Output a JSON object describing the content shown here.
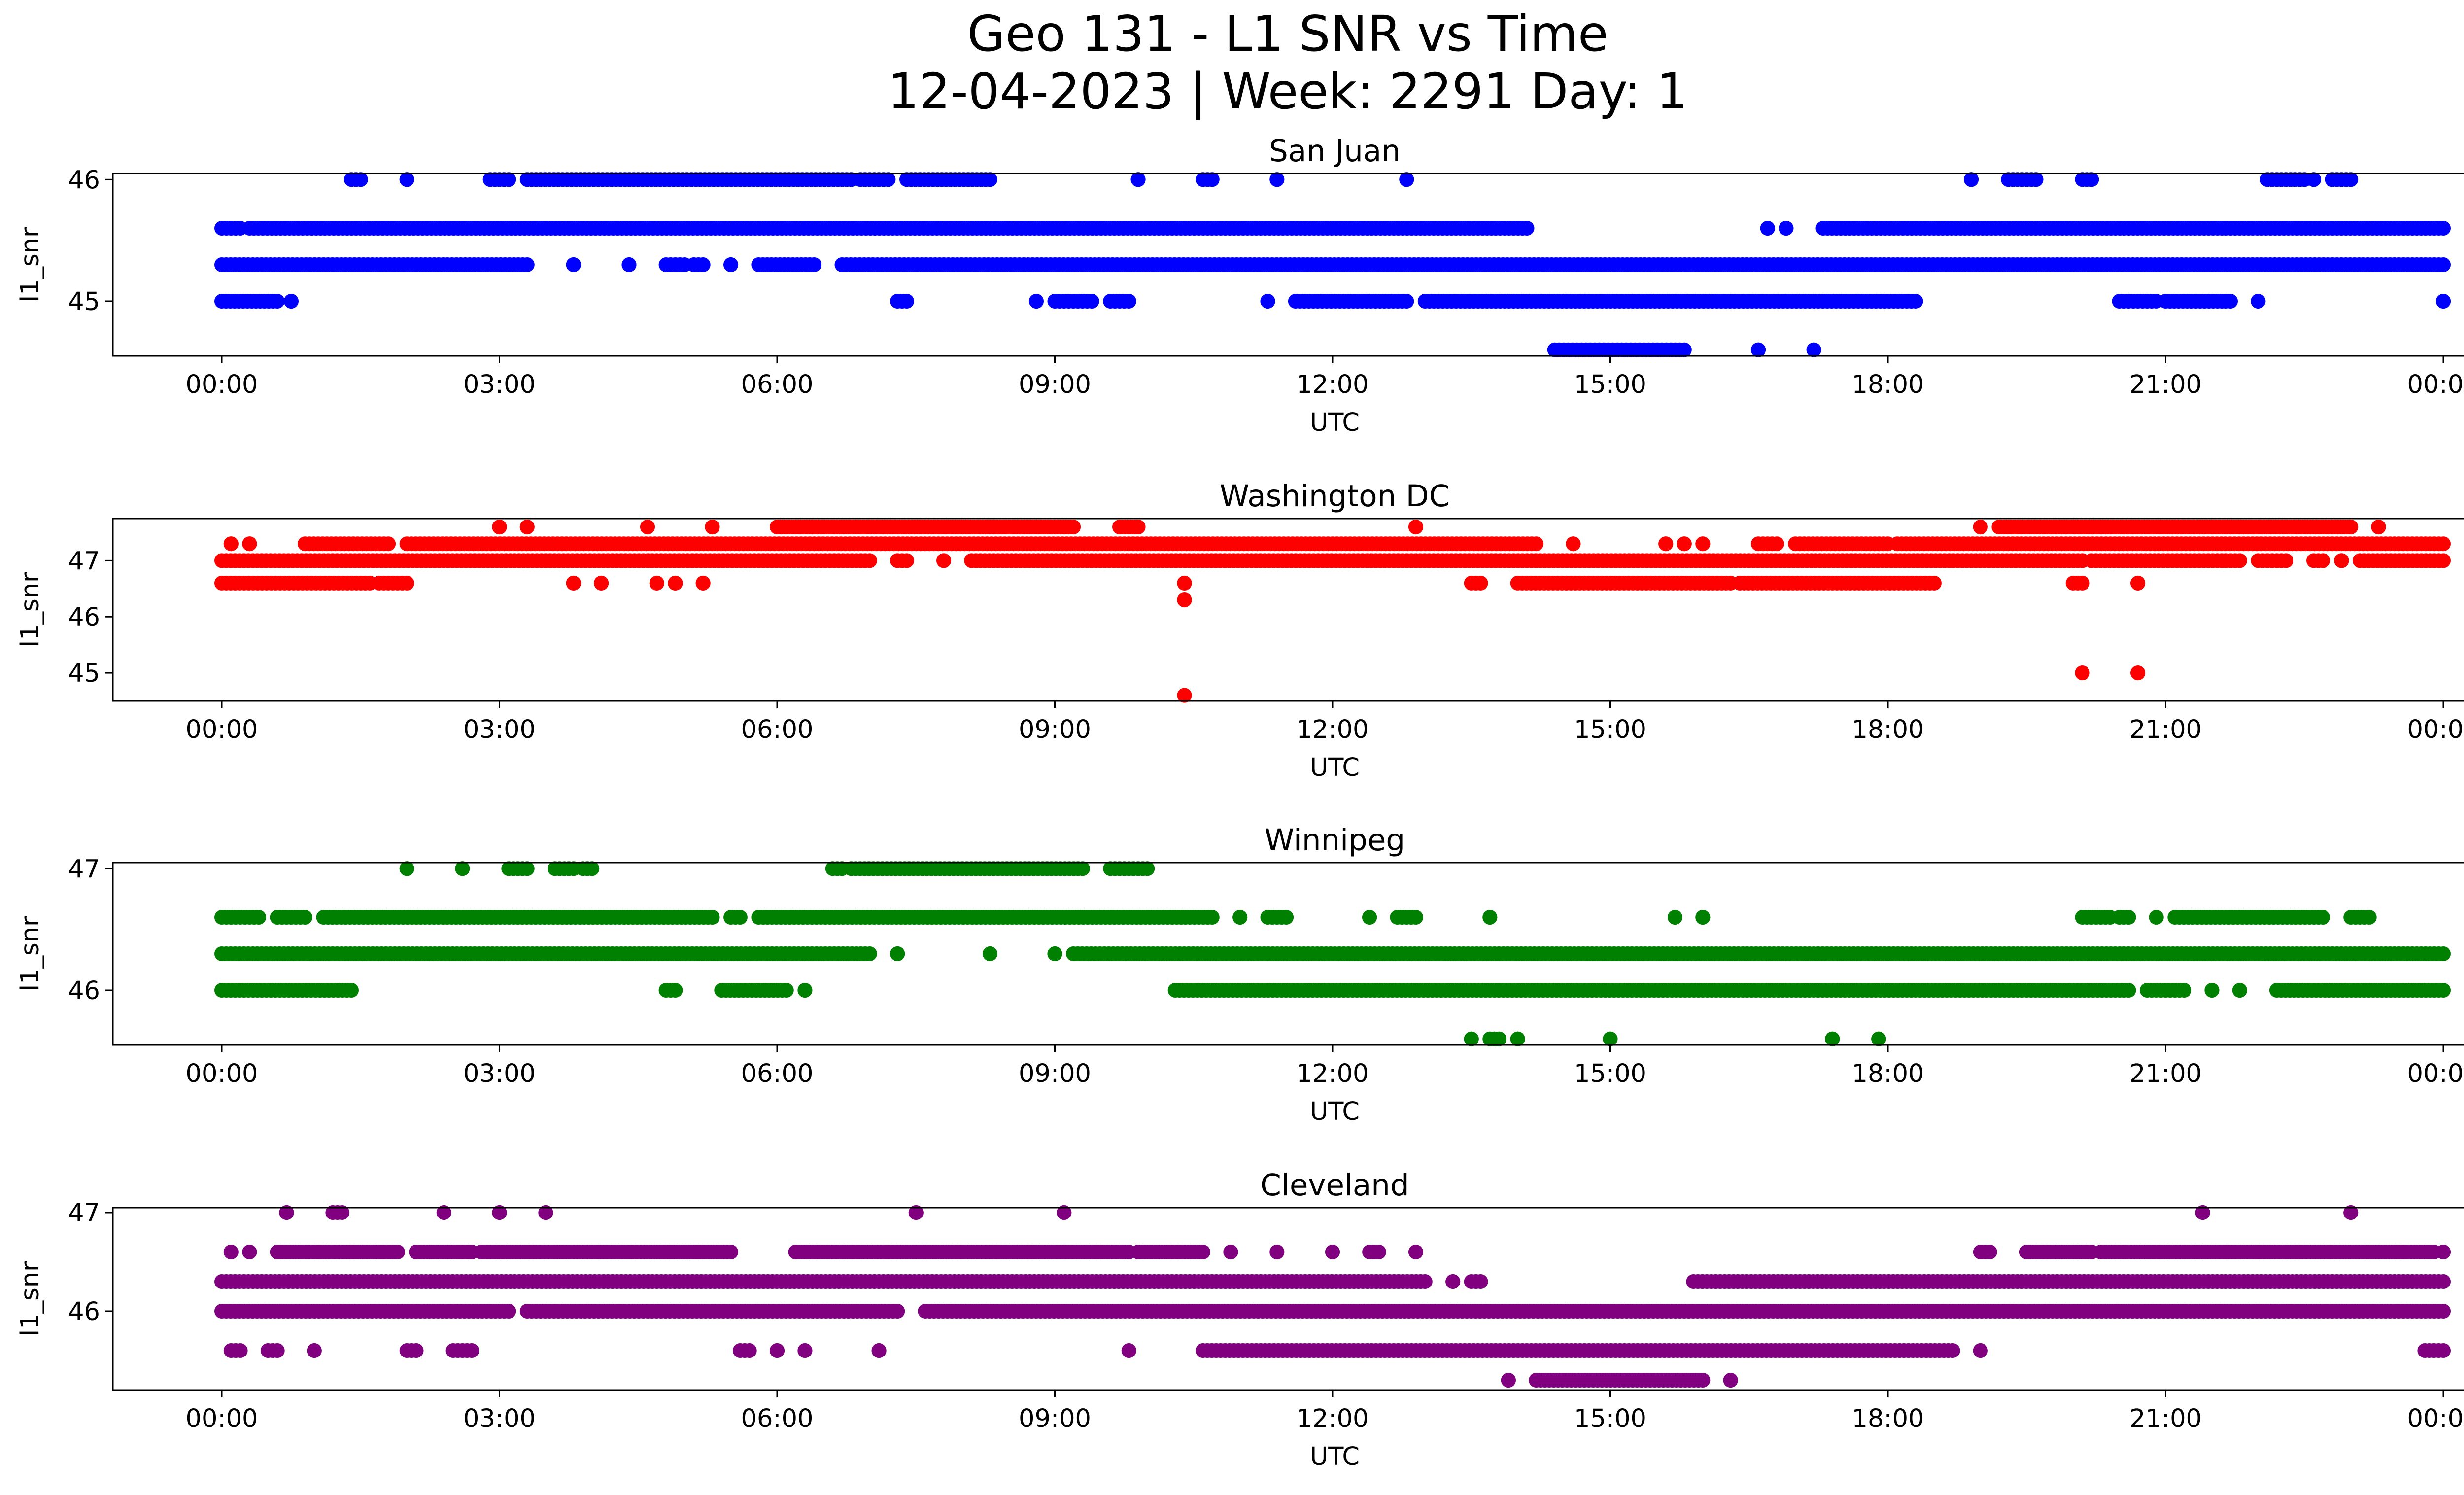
{
  "figure": {
    "title_line1": "Geo 131 - L1 SNR vs Time",
    "title_line2": "12-04-2023 | Week: 2291 Day: 1"
  },
  "chart_data": [
    {
      "type": "scatter",
      "title": "San Juan",
      "xlabel": "UTC",
      "ylabel": "l1_snr",
      "color": "#0000ff",
      "xlim": [
        0,
        24
      ],
      "ylim": [
        44.55,
        46.05
      ],
      "x_ticks": [
        "00:00",
        "03:00",
        "06:00",
        "09:00",
        "12:00",
        "15:00",
        "18:00",
        "21:00",
        "00:00"
      ],
      "y_ticks": [
        45,
        46
      ],
      "grid": false,
      "bands": [
        {
          "y": 46.0,
          "segments": [
            [
              1.4,
              1.5
            ],
            [
              2.0,
              2.0
            ],
            [
              2.9,
              3.1
            ],
            [
              3.3,
              6.8
            ],
            [
              6.9,
              7.2
            ],
            [
              7.4,
              8.3
            ],
            [
              9.9,
              9.9
            ],
            [
              10.6,
              10.7
            ],
            [
              11.4,
              11.4
            ],
            [
              12.8,
              12.8
            ],
            [
              18.9,
              18.9
            ],
            [
              19.3,
              19.6
            ],
            [
              20.1,
              20.2
            ],
            [
              22.1,
              22.5
            ],
            [
              22.6,
              22.6
            ],
            [
              22.8,
              23.0
            ]
          ]
        },
        {
          "y": 45.6,
          "segments": [
            [
              0.0,
              0.2
            ],
            [
              0.3,
              14.1
            ],
            [
              16.7,
              16.7
            ],
            [
              16.9,
              16.9
            ],
            [
              17.3,
              24.0
            ]
          ]
        },
        {
          "y": 45.3,
          "segments": [
            [
              0.0,
              3.3
            ],
            [
              3.8,
              3.8
            ],
            [
              4.4,
              4.4
            ],
            [
              4.8,
              5.0
            ],
            [
              5.1,
              5.2
            ],
            [
              5.5,
              5.5
            ],
            [
              5.8,
              6.4
            ],
            [
              6.7,
              24.0
            ]
          ]
        },
        {
          "y": 45.0,
          "segments": [
            [
              0.0,
              0.6
            ],
            [
              0.75,
              0.75
            ],
            [
              7.3,
              7.4
            ],
            [
              8.8,
              8.8
            ],
            [
              9.0,
              9.4
            ],
            [
              9.6,
              9.8
            ],
            [
              11.3,
              11.3
            ],
            [
              11.6,
              12.8
            ],
            [
              13.0,
              18.3
            ],
            [
              20.5,
              20.9
            ],
            [
              21.0,
              21.7
            ],
            [
              22.0,
              22.0
            ],
            [
              24.0,
              24.0
            ]
          ]
        },
        {
          "y": 44.6,
          "segments": [
            [
              14.4,
              15.8
            ],
            [
              16.6,
              16.6
            ],
            [
              17.2,
              17.2
            ]
          ]
        }
      ]
    },
    {
      "type": "scatter",
      "title": "Washington DC",
      "xlabel": "UTC",
      "ylabel": "l1_snr",
      "color": "#ff0000",
      "xlim": [
        0,
        24
      ],
      "ylim": [
        44.5,
        47.75
      ],
      "x_ticks": [
        "00:00",
        "03:00",
        "06:00",
        "09:00",
        "12:00",
        "15:00",
        "18:00",
        "21:00",
        "00:00"
      ],
      "y_ticks": [
        45,
        46,
        47
      ],
      "grid": false,
      "bands": [
        {
          "y": 47.6,
          "segments": [
            [
              3.0,
              3.0
            ],
            [
              3.3,
              3.3
            ],
            [
              4.6,
              4.6
            ],
            [
              5.3,
              5.3
            ],
            [
              6.0,
              9.2
            ],
            [
              9.7,
              9.9
            ],
            [
              12.9,
              12.9
            ],
            [
              19.0,
              19.0
            ],
            [
              19.2,
              23.0
            ],
            [
              23.3,
              23.3
            ]
          ]
        },
        {
          "y": 47.3,
          "segments": [
            [
              0.1,
              0.1
            ],
            [
              0.3,
              0.3
            ],
            [
              0.9,
              1.8
            ],
            [
              2.0,
              14.2
            ],
            [
              14.6,
              14.6
            ],
            [
              15.6,
              15.6
            ],
            [
              15.8,
              15.8
            ],
            [
              16.0,
              16.0
            ],
            [
              16.6,
              16.8
            ],
            [
              17.0,
              18.0
            ],
            [
              18.1,
              24.0
            ]
          ]
        },
        {
          "y": 47.0,
          "segments": [
            [
              0.0,
              7.0
            ],
            [
              7.3,
              7.4
            ],
            [
              7.8,
              7.8
            ],
            [
              8.1,
              20.1
            ],
            [
              20.2,
              21.8
            ],
            [
              22.0,
              22.3
            ],
            [
              22.6,
              22.7
            ],
            [
              22.9,
              22.9
            ],
            [
              23.1,
              24.0
            ]
          ]
        },
        {
          "y": 46.6,
          "segments": [
            [
              0.0,
              1.6
            ],
            [
              1.7,
              2.0
            ],
            [
              3.8,
              3.8
            ],
            [
              4.1,
              4.1
            ],
            [
              4.7,
              4.7
            ],
            [
              4.9,
              4.9
            ],
            [
              5.2,
              5.2
            ],
            [
              10.4,
              10.4
            ],
            [
              13.5,
              13.6
            ],
            [
              14.0,
              16.3
            ],
            [
              16.4,
              18.5
            ],
            [
              20.0,
              20.1
            ],
            [
              20.7,
              20.7
            ]
          ]
        },
        {
          "y": 46.3,
          "segments": [
            [
              10.4,
              10.4
            ]
          ]
        },
        {
          "y": 45.0,
          "segments": [
            [
              20.1,
              20.1
            ],
            [
              20.7,
              20.7
            ]
          ]
        },
        {
          "y": 44.6,
          "segments": [
            [
              10.4,
              10.4
            ]
          ]
        }
      ]
    },
    {
      "type": "scatter",
      "title": "Winnipeg",
      "xlabel": "UTC",
      "ylabel": "l1_snr",
      "color": "#008000",
      "xlim": [
        0,
        24
      ],
      "ylim": [
        45.55,
        47.05
      ],
      "x_ticks": [
        "00:00",
        "03:00",
        "06:00",
        "09:00",
        "12:00",
        "15:00",
        "18:00",
        "21:00",
        "00:00"
      ],
      "y_ticks": [
        46,
        47
      ],
      "grid": false,
      "bands": [
        {
          "y": 47.0,
          "segments": [
            [
              2.0,
              2.0
            ],
            [
              2.6,
              2.6
            ],
            [
              3.1,
              3.3
            ],
            [
              3.6,
              3.8
            ],
            [
              3.9,
              4.0
            ],
            [
              6.6,
              6.7
            ],
            [
              6.8,
              9.3
            ],
            [
              9.6,
              10.0
            ]
          ]
        },
        {
          "y": 46.6,
          "segments": [
            [
              0.0,
              0.4
            ],
            [
              0.6,
              0.9
            ],
            [
              1.1,
              5.3
            ],
            [
              5.5,
              5.6
            ],
            [
              5.8,
              10.7
            ],
            [
              11.0,
              11.0
            ],
            [
              11.3,
              11.5
            ],
            [
              12.4,
              12.4
            ],
            [
              12.7,
              12.9
            ],
            [
              13.7,
              13.7
            ],
            [
              15.7,
              15.7
            ],
            [
              16.0,
              16.0
            ],
            [
              20.1,
              20.4
            ],
            [
              20.5,
              20.6
            ],
            [
              20.9,
              20.9
            ],
            [
              21.1,
              22.7
            ],
            [
              23.0,
              23.2
            ]
          ]
        },
        {
          "y": 46.3,
          "segments": [
            [
              0.0,
              7.0
            ],
            [
              7.3,
              7.3
            ],
            [
              8.3,
              8.3
            ],
            [
              9.0,
              9.0
            ],
            [
              9.2,
              24.0
            ]
          ]
        },
        {
          "y": 46.0,
          "segments": [
            [
              0.0,
              1.4
            ],
            [
              4.8,
              4.9
            ],
            [
              5.4,
              6.1
            ],
            [
              6.3,
              6.3
            ],
            [
              10.3,
              20.6
            ],
            [
              20.8,
              21.2
            ],
            [
              21.5,
              21.5
            ],
            [
              21.8,
              21.8
            ],
            [
              22.2,
              24.0
            ]
          ]
        },
        {
          "y": 45.6,
          "segments": [
            [
              13.5,
              13.5
            ],
            [
              13.7,
              13.8
            ],
            [
              14.0,
              14.0
            ],
            [
              15.0,
              15.0
            ],
            [
              17.4,
              17.4
            ],
            [
              17.9,
              17.9
            ]
          ]
        }
      ]
    },
    {
      "type": "scatter",
      "title": "Cleveland",
      "xlabel": "UTC",
      "ylabel": "l1_snr",
      "color": "#800080",
      "xlim": [
        0,
        24
      ],
      "ylim": [
        45.2,
        47.05
      ],
      "x_ticks": [
        "00:00",
        "03:00",
        "06:00",
        "09:00",
        "12:00",
        "15:00",
        "18:00",
        "21:00",
        "00:00"
      ],
      "y_ticks": [
        46,
        47
      ],
      "grid": false,
      "bands": [
        {
          "y": 47.0,
          "segments": [
            [
              0.7,
              0.7
            ],
            [
              1.2,
              1.3
            ],
            [
              2.4,
              2.4
            ],
            [
              3.0,
              3.0
            ],
            [
              3.5,
              3.5
            ],
            [
              7.5,
              7.5
            ],
            [
              9.1,
              9.1
            ],
            [
              21.4,
              21.4
            ],
            [
              23.0,
              23.0
            ]
          ]
        },
        {
          "y": 46.6,
          "segments": [
            [
              0.1,
              0.1
            ],
            [
              0.3,
              0.3
            ],
            [
              0.6,
              1.9
            ],
            [
              2.1,
              2.7
            ],
            [
              2.8,
              5.5
            ],
            [
              6.2,
              9.8
            ],
            [
              9.9,
              10.6
            ],
            [
              10.9,
              10.9
            ],
            [
              11.4,
              11.4
            ],
            [
              12.0,
              12.0
            ],
            [
              12.4,
              12.5
            ],
            [
              12.9,
              12.9
            ],
            [
              19.0,
              19.1
            ],
            [
              19.5,
              20.2
            ],
            [
              20.3,
              23.9
            ],
            [
              24.0,
              24.0
            ]
          ]
        },
        {
          "y": 46.3,
          "segments": [
            [
              0.0,
              13.0
            ],
            [
              13.3,
              13.3
            ],
            [
              13.5,
              13.6
            ],
            [
              15.9,
              24.0
            ]
          ]
        },
        {
          "y": 46.0,
          "segments": [
            [
              0.0,
              3.1
            ],
            [
              3.3,
              7.3
            ],
            [
              7.6,
              24.0
            ]
          ]
        },
        {
          "y": 45.6,
          "segments": [
            [
              0.1,
              0.2
            ],
            [
              0.5,
              0.6
            ],
            [
              1.0,
              1.0
            ],
            [
              2.0,
              2.1
            ],
            [
              2.5,
              2.7
            ],
            [
              5.6,
              5.7
            ],
            [
              6.0,
              6.0
            ],
            [
              6.3,
              6.3
            ],
            [
              7.1,
              7.1
            ],
            [
              9.8,
              9.8
            ],
            [
              10.6,
              18.7
            ],
            [
              19.0,
              19.0
            ],
            [
              23.8,
              24.0
            ]
          ]
        },
        {
          "y": 45.3,
          "segments": [
            [
              13.9,
              13.9
            ],
            [
              14.2,
              16.0
            ],
            [
              16.3,
              16.3
            ]
          ]
        }
      ]
    }
  ]
}
